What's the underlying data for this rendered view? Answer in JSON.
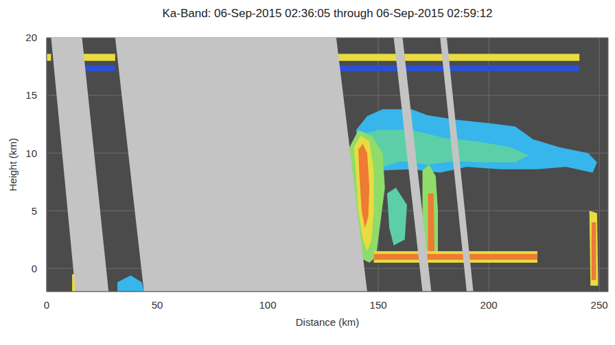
{
  "chart_data": {
    "type": "regions",
    "title": "Ka-Band: 06-Sep-2015 02:36:05 through 06-Sep-2015 02:59:12",
    "x_label": "Distance (km)",
    "y_label": "Height (km)",
    "xlim": [
      0,
      254
    ],
    "ylim": [
      -2,
      20
    ],
    "xticks": [
      0,
      50,
      100,
      150,
      200,
      250
    ],
    "yticks": [
      0,
      5,
      10,
      15,
      20
    ],
    "grid": true,
    "regions": [
      {
        "color": "#36b6ea",
        "points": [
          [
            140,
            12
          ],
          [
            145,
            13.2
          ],
          [
            152,
            13.8
          ],
          [
            165,
            13.8
          ],
          [
            172,
            13.3
          ],
          [
            185,
            12.9
          ],
          [
            200,
            12.6
          ],
          [
            212,
            12.3
          ],
          [
            220,
            11.2
          ],
          [
            232,
            10.5
          ],
          [
            245,
            10
          ],
          [
            249,
            9.2
          ],
          [
            247,
            8.3
          ],
          [
            235,
            8.8
          ],
          [
            222,
            8.6
          ],
          [
            205,
            8.6
          ],
          [
            190,
            8.8
          ],
          [
            178,
            8.3
          ],
          [
            165,
            8.6
          ],
          [
            152,
            8.5
          ],
          [
            142,
            9
          ]
        ]
      },
      {
        "color": "#5ccfa8",
        "points": [
          [
            141,
            11.5
          ],
          [
            150,
            12
          ],
          [
            165,
            12
          ],
          [
            180,
            11.3
          ],
          [
            195,
            11
          ],
          [
            210,
            10.5
          ],
          [
            218,
            9.8
          ],
          [
            212,
            9.2
          ],
          [
            198,
            9.2
          ],
          [
            185,
            9.3
          ],
          [
            172,
            9
          ],
          [
            160,
            9.3
          ],
          [
            148,
            8.5
          ],
          [
            142,
            8.5
          ]
        ]
      },
      {
        "color": "#8fdc6a",
        "points": [
          [
            137,
            10.5
          ],
          [
            141,
            12
          ],
          [
            147,
            11.5
          ],
          [
            152,
            10
          ],
          [
            153,
            7
          ],
          [
            151,
            4
          ],
          [
            149,
            1
          ],
          [
            146,
            0.5
          ],
          [
            143,
            0.8
          ],
          [
            141,
            3
          ],
          [
            139,
            6
          ]
        ]
      },
      {
        "color": "#e8dc40",
        "points": [
          [
            139,
            10.5
          ],
          [
            142,
            11.5
          ],
          [
            146,
            11
          ],
          [
            148,
            8.5
          ],
          [
            148,
            5
          ],
          [
            147,
            2.5
          ],
          [
            145,
            1.5
          ],
          [
            143,
            2.5
          ],
          [
            141,
            5
          ],
          [
            140,
            8
          ]
        ]
      },
      {
        "color": "#ee7a34",
        "points": [
          [
            141,
            10.3
          ],
          [
            143,
            10.8
          ],
          [
            145,
            10
          ],
          [
            146,
            7
          ],
          [
            145.5,
            4.5
          ],
          [
            144,
            3.5
          ],
          [
            142.5,
            5
          ],
          [
            141.5,
            8
          ]
        ]
      },
      {
        "color": "#8fdc6a",
        "points": [
          [
            170,
            8.5
          ],
          [
            173,
            9
          ],
          [
            176,
            8
          ],
          [
            177,
            5
          ],
          [
            177,
            1
          ],
          [
            171,
            1
          ],
          [
            170,
            4
          ]
        ]
      },
      {
        "color": "#ee7a34",
        "points": [
          [
            172.5,
            6.5
          ],
          [
            175,
            6.5
          ],
          [
            175.5,
            1.2
          ],
          [
            172.5,
            1.2
          ]
        ]
      },
      {
        "color": "#5ccfa8",
        "points": [
          [
            154,
            6.5
          ],
          [
            158,
            7
          ],
          [
            163,
            5.5
          ],
          [
            162,
            2.5
          ],
          [
            157,
            2
          ],
          [
            155,
            3.5
          ]
        ]
      },
      {
        "color": "#e8dc40",
        "points": [
          [
            245.5,
            5
          ],
          [
            249,
            4.8
          ],
          [
            249.5,
            -1.5
          ],
          [
            246,
            -1.5
          ]
        ]
      },
      {
        "color": "#ee7a34",
        "points": [
          [
            246.5,
            4
          ],
          [
            248.5,
            4
          ],
          [
            248.5,
            -1
          ],
          [
            246.5,
            -1
          ]
        ]
      },
      {
        "color": "#36b6ea",
        "points": [
          [
            32,
            -1.2
          ],
          [
            38,
            -0.6
          ],
          [
            43,
            -1.2
          ],
          [
            44,
            -2
          ],
          [
            32,
            -2
          ]
        ]
      },
      {
        "color": "#e8dc40",
        "points": [
          [
            11.5,
            -0.5
          ],
          [
            13.5,
            -0.5
          ],
          [
            13.5,
            -2
          ],
          [
            11.5,
            -2
          ]
        ]
      },
      {
        "color": "#e8dc40",
        "points": [
          [
            148,
            0.5
          ],
          [
            222,
            0.5
          ],
          [
            222,
            1.5
          ],
          [
            148,
            1.5
          ]
        ]
      },
      {
        "color": "#ee7a34",
        "points": [
          [
            148,
            0.75
          ],
          [
            222,
            0.75
          ],
          [
            222,
            1.25
          ],
          [
            148,
            1.25
          ]
        ]
      },
      {
        "color": "#e8dc40",
        "points": [
          [
            0,
            18
          ],
          [
            2,
            18
          ],
          [
            2,
            18.6
          ],
          [
            0,
            18.6
          ]
        ]
      },
      {
        "color": "#e8dc40",
        "points": [
          [
            16,
            18
          ],
          [
            31,
            18
          ],
          [
            31,
            18.6
          ],
          [
            16,
            18.6
          ]
        ]
      },
      {
        "color": "#2a4fd8",
        "points": [
          [
            17,
            17.1
          ],
          [
            31,
            17.1
          ],
          [
            31,
            17.6
          ],
          [
            17,
            17.6
          ]
        ]
      },
      {
        "color": "#e8dc40",
        "points": [
          [
            131,
            18
          ],
          [
            241,
            18
          ],
          [
            241,
            18.6
          ],
          [
            131,
            18.6
          ]
        ]
      },
      {
        "color": "#2a4fd8",
        "points": [
          [
            131,
            17.1
          ],
          [
            241,
            17.1
          ],
          [
            241,
            17.6
          ],
          [
            131,
            17.6
          ]
        ]
      },
      {
        "color": "#c4c4c4",
        "points": [
          [
            2,
            20
          ],
          [
            16,
            20
          ],
          [
            28,
            -2
          ],
          [
            13,
            -2
          ]
        ]
      },
      {
        "color": "#c4c4c4",
        "points": [
          [
            31,
            20
          ],
          [
            131,
            20
          ],
          [
            145,
            -2
          ],
          [
            44,
            -2
          ]
        ]
      },
      {
        "color": "#c4c4c4",
        "points": [
          [
            157,
            20
          ],
          [
            161,
            20
          ],
          [
            174,
            -2
          ],
          [
            170,
            -2
          ]
        ]
      },
      {
        "color": "#c4c4c4",
        "points": [
          [
            178,
            20
          ],
          [
            181,
            20
          ],
          [
            193,
            -2
          ],
          [
            190,
            -2
          ]
        ]
      }
    ]
  }
}
